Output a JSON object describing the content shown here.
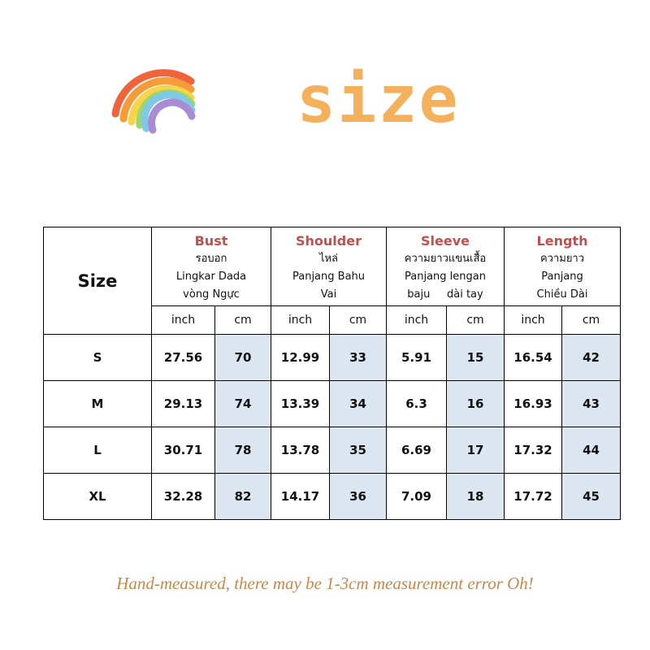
{
  "title": "size",
  "table": {
    "size_label": "Size",
    "groups": [
      {
        "name": "Bust",
        "lines": [
          "รอบอก",
          "Lingkar Dada",
          "vòng Ngực"
        ]
      },
      {
        "name": "Shoulder",
        "lines": [
          "ไหล่",
          "Panjang Bahu",
          "Vai"
        ]
      },
      {
        "name": "Sleeve",
        "lines": [
          "ความยาวแขนเสื้อ",
          "Panjang lengan",
          "baju     dài tay"
        ]
      },
      {
        "name": "Length",
        "lines": [
          "ความยาว",
          "Panjang",
          "Chiều Dài"
        ]
      }
    ],
    "units": [
      "inch",
      "cm"
    ],
    "rows": [
      [
        "S",
        "27.56",
        "70",
        "12.99",
        "33",
        "5.91",
        "15",
        "16.54",
        "42"
      ],
      [
        "M",
        "29.13",
        "74",
        "13.39",
        "34",
        "6.3",
        "16",
        "16.93",
        "43"
      ],
      [
        "L",
        "30.71",
        "78",
        "13.78",
        "35",
        "6.69",
        "17",
        "17.32",
        "44"
      ],
      [
        "XL",
        "32.28",
        "82",
        "14.17",
        "36",
        "7.09",
        "18",
        "17.72",
        "45"
      ]
    ]
  },
  "footer": "Hand-measured, there may be 1-3cm measurement error Oh!"
}
